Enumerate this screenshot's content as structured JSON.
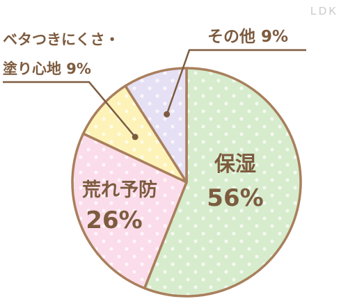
{
  "brand": "LDK",
  "colors": {
    "outline": "#a97f5c",
    "text": "#7d5b3f",
    "dot": "#ffffff"
  },
  "chart_data": {
    "type": "pie",
    "start": "12 o'clock",
    "direction": "clockwise",
    "slices": [
      {
        "label": "保湿",
        "value": 56,
        "value_label": "56%",
        "color": "#d6eccd"
      },
      {
        "label": "荒れ予防",
        "value": 26,
        "value_label": "26%",
        "color": "#fbdcea"
      },
      {
        "label": "ベタつきにくさ・塗り心地",
        "label_lines": [
          "ベタつきにくさ・",
          "塗り心地"
        ],
        "value": 9,
        "value_label": "9%",
        "color": "#fdf3b8"
      },
      {
        "label": "その他",
        "value": 9,
        "value_label": "9%",
        "color": "#e6e0f5"
      }
    ]
  }
}
